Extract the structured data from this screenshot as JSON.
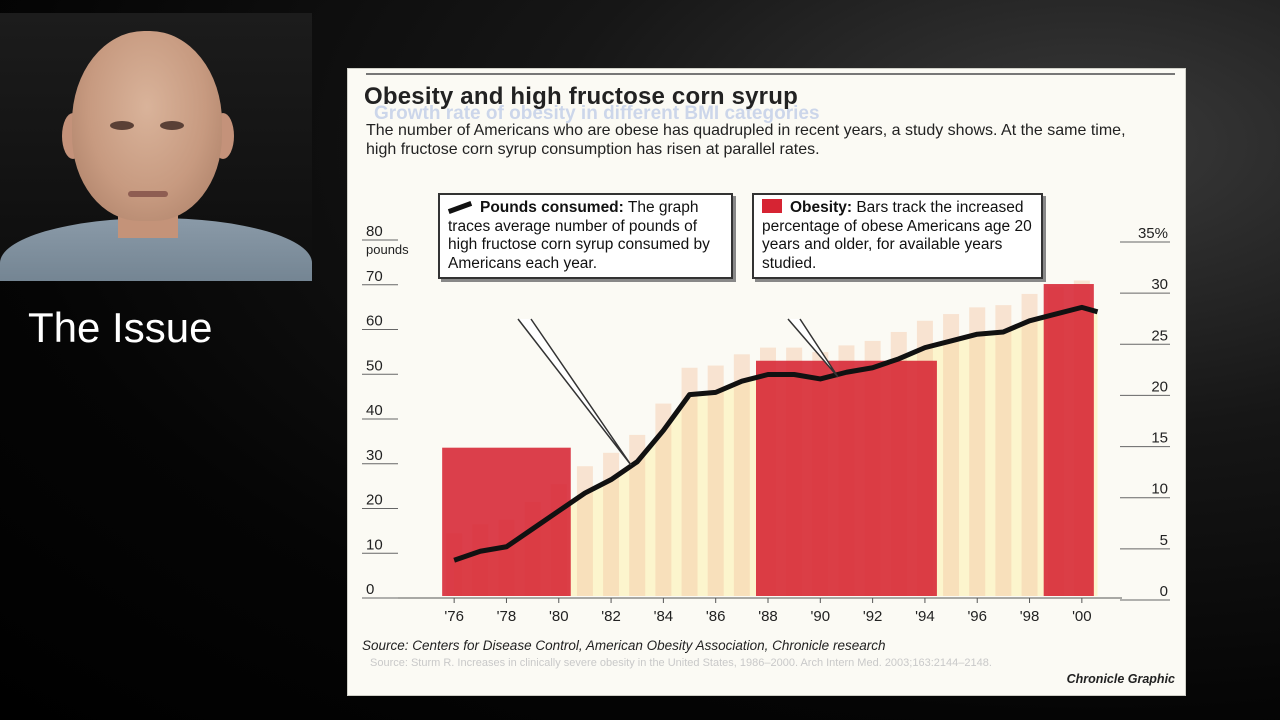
{
  "slide": {
    "title": "The Issue"
  },
  "figure": {
    "title": "Obesity and high fructose corn syrup",
    "ghost_subtitle": "Growth rate of obesity in different BMI categories",
    "description": "The number of Americans who are obese has quadrupled in recent years, a study shows. At the same time, high fructose corn syrup consumption has risen at parallel rates.",
    "callout_pounds": {
      "heading": "Pounds consumed:",
      "text": "The graph traces average number of pounds of high fructose corn syrup consumed by Americans each year."
    },
    "callout_obesity": {
      "heading": "Obesity:",
      "text": "Bars track the increased percentage of obese Americans age 20 years and older, for available years studied."
    },
    "source": "Source: Centers for Disease Control, American Obesity Association, Chronicle research",
    "ghost_source": "Source: Sturm R. Increases in clinically severe obesity in the United States, 1986–2000. Arch Intern Med. 2003;163:2144–2148.",
    "credit": "Chronicle Graphic"
  },
  "chart_data": {
    "type": "bar",
    "x_tick_labels": [
      "'76",
      "'78",
      "'80",
      "'82",
      "'84",
      "'86",
      "'88",
      "'90",
      "'92",
      "'94",
      "'96",
      "'98",
      "'00"
    ],
    "left_axis": {
      "unit_label": "pounds",
      "ticks": [
        0,
        10,
        20,
        30,
        40,
        50,
        60,
        70,
        80
      ],
      "ylim": [
        0,
        80
      ]
    },
    "right_axis": {
      "ticks": [
        "0",
        "5",
        "10",
        "15",
        "20",
        "25",
        "30",
        "35%"
      ],
      "ylim": [
        0,
        35
      ]
    },
    "series": [
      {
        "name": "Pounds consumed",
        "type": "line",
        "color": "#111111",
        "points": [
          {
            "year": 1976,
            "value": 8
          },
          {
            "year": 1977,
            "value": 10
          },
          {
            "year": 1978,
            "value": 11
          },
          {
            "year": 1979,
            "value": 15
          },
          {
            "year": 1980,
            "value": 19
          },
          {
            "year": 1981,
            "value": 23
          },
          {
            "year": 1982,
            "value": 26
          },
          {
            "year": 1983,
            "value": 30
          },
          {
            "year": 1984,
            "value": 37
          },
          {
            "year": 1985,
            "value": 45
          },
          {
            "year": 1986,
            "value": 45.5
          },
          {
            "year": 1987,
            "value": 48
          },
          {
            "year": 1988,
            "value": 49.5
          },
          {
            "year": 1989,
            "value": 49.5
          },
          {
            "year": 1990,
            "value": 48.5
          },
          {
            "year": 1991,
            "value": 50
          },
          {
            "year": 1992,
            "value": 51
          },
          {
            "year": 1993,
            "value": 53
          },
          {
            "year": 1994,
            "value": 55.5
          },
          {
            "year": 1995,
            "value": 57
          },
          {
            "year": 1996,
            "value": 58.5
          },
          {
            "year": 1997,
            "value": 59
          },
          {
            "year": 1998,
            "value": 61.5
          },
          {
            "year": 1999,
            "value": 63
          },
          {
            "year": 2000,
            "value": 64.5
          },
          {
            "year": 2000.6,
            "value": 63.5
          }
        ]
      },
      {
        "name": "Obesity",
        "type": "bar",
        "color": "#d62433",
        "bars": [
          {
            "from": 1976,
            "to": 1980,
            "percent": 14.5
          },
          {
            "from": 1988,
            "to": 1994,
            "percent": 23
          },
          {
            "from": 1999,
            "to": 2000,
            "percent": 30.5
          }
        ]
      }
    ]
  }
}
